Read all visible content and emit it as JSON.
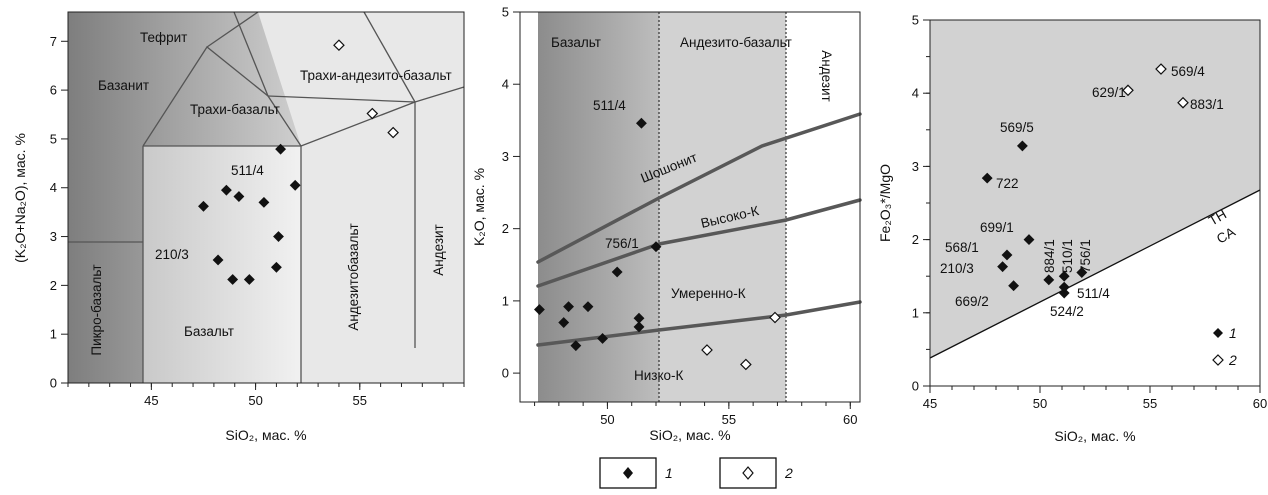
{
  "chart_data": [
    {
      "type": "scatter",
      "title": "",
      "xlabel": "SiO₂, мас. %",
      "ylabel": "(K₂O+Na₂O), мас. %",
      "xlim": [
        41,
        60
      ],
      "ylim": [
        0,
        7.6
      ],
      "xticks": [
        "45",
        "50",
        "55"
      ],
      "yticks": [
        "0",
        "1",
        "2",
        "3",
        "4",
        "5",
        "6",
        "7"
      ],
      "fields": [
        "Тефрит",
        "Базанит",
        "Трахи-базальт",
        "Трахи-андезито-базальт",
        "Пикро-базальт",
        "Базальт",
        "Андезитобазальт",
        "Андезит"
      ],
      "series": [
        {
          "name": "1",
          "marker": "filled-diamond",
          "x": [
            47.5,
            48.2,
            48.6,
            48.9,
            49.2,
            49.7,
            50.4,
            51.0,
            51.1,
            51.2,
            51.9
          ],
          "y": [
            3.62,
            2.52,
            3.95,
            2.12,
            3.82,
            2.12,
            3.7,
            2.37,
            3.0,
            4.79,
            4.05
          ]
        },
        {
          "name": "2",
          "marker": "open-diamond",
          "x": [
            54.0,
            55.6,
            56.6
          ],
          "y": [
            6.92,
            5.52,
            5.13
          ]
        }
      ],
      "annotations": [
        "511/4",
        "210/3"
      ]
    },
    {
      "type": "scatter",
      "title": "",
      "xlabel": "SiO₂, мас. %",
      "ylabel": "K₂O, мас. %",
      "xlim": [
        46.4,
        60.4
      ],
      "ylim": [
        -0.4,
        5
      ],
      "xticks": [
        "50",
        "55",
        "60"
      ],
      "yticks": [
        "0",
        "1",
        "2",
        "3",
        "4",
        "5"
      ],
      "fields": [
        "Базальт",
        "Андезито-базальт",
        "Андезит",
        "Шошонит",
        "Высоко-К",
        "Умеренно-К",
        "Низко-К"
      ],
      "series": [
        {
          "name": "1",
          "marker": "filled-diamond",
          "x": [
            47.2,
            48.2,
            48.4,
            48.7,
            49.2,
            49.8,
            50.4,
            51.3,
            51.3,
            51.4,
            52.0
          ],
          "y": [
            0.88,
            0.7,
            0.92,
            0.38,
            0.92,
            0.48,
            1.4,
            0.64,
            0.76,
            3.46,
            1.75
          ]
        },
        {
          "name": "2",
          "marker": "open-diamond",
          "x": [
            54.1,
            55.7,
            56.9
          ],
          "y": [
            0.32,
            0.12,
            0.77
          ]
        }
      ],
      "annotations": [
        "511/4",
        "756/1"
      ]
    },
    {
      "type": "scatter",
      "title": "",
      "xlabel": "SiO₂, мас. %",
      "ylabel": "Fe₂O₃*/MgO",
      "xlim": [
        45,
        60
      ],
      "ylim": [
        0,
        5
      ],
      "xticks": [
        "45",
        "50",
        "55",
        "60"
      ],
      "yticks": [
        "0",
        "1",
        "2",
        "3",
        "4",
        "5"
      ],
      "fields": [
        "TH",
        "CA"
      ],
      "series": [
        {
          "name": "1",
          "marker": "filled-diamond",
          "x": [
            47.6,
            48.3,
            48.5,
            48.8,
            49.2,
            49.5,
            50.4,
            51.1,
            51.1,
            51.1,
            51.9
          ],
          "y": [
            2.84,
            1.63,
            1.79,
            1.37,
            3.28,
            2.0,
            1.45,
            1.27,
            1.35,
            1.5,
            1.55
          ]
        },
        {
          "name": "2",
          "marker": "open-diamond",
          "x": [
            54.0,
            55.5,
            56.5
          ],
          "y": [
            4.04,
            4.33,
            3.87
          ]
        }
      ],
      "annotations": [
        "569/4",
        "629/1",
        "883/1",
        "569/5",
        "722",
        "699/1",
        "568/1",
        "210/3",
        "669/2",
        "884/1",
        "510/1",
        "756/1",
        "511/4",
        "524/2"
      ],
      "inline_legend": [
        "1",
        "2"
      ]
    }
  ],
  "legend": [
    "1",
    "2"
  ]
}
